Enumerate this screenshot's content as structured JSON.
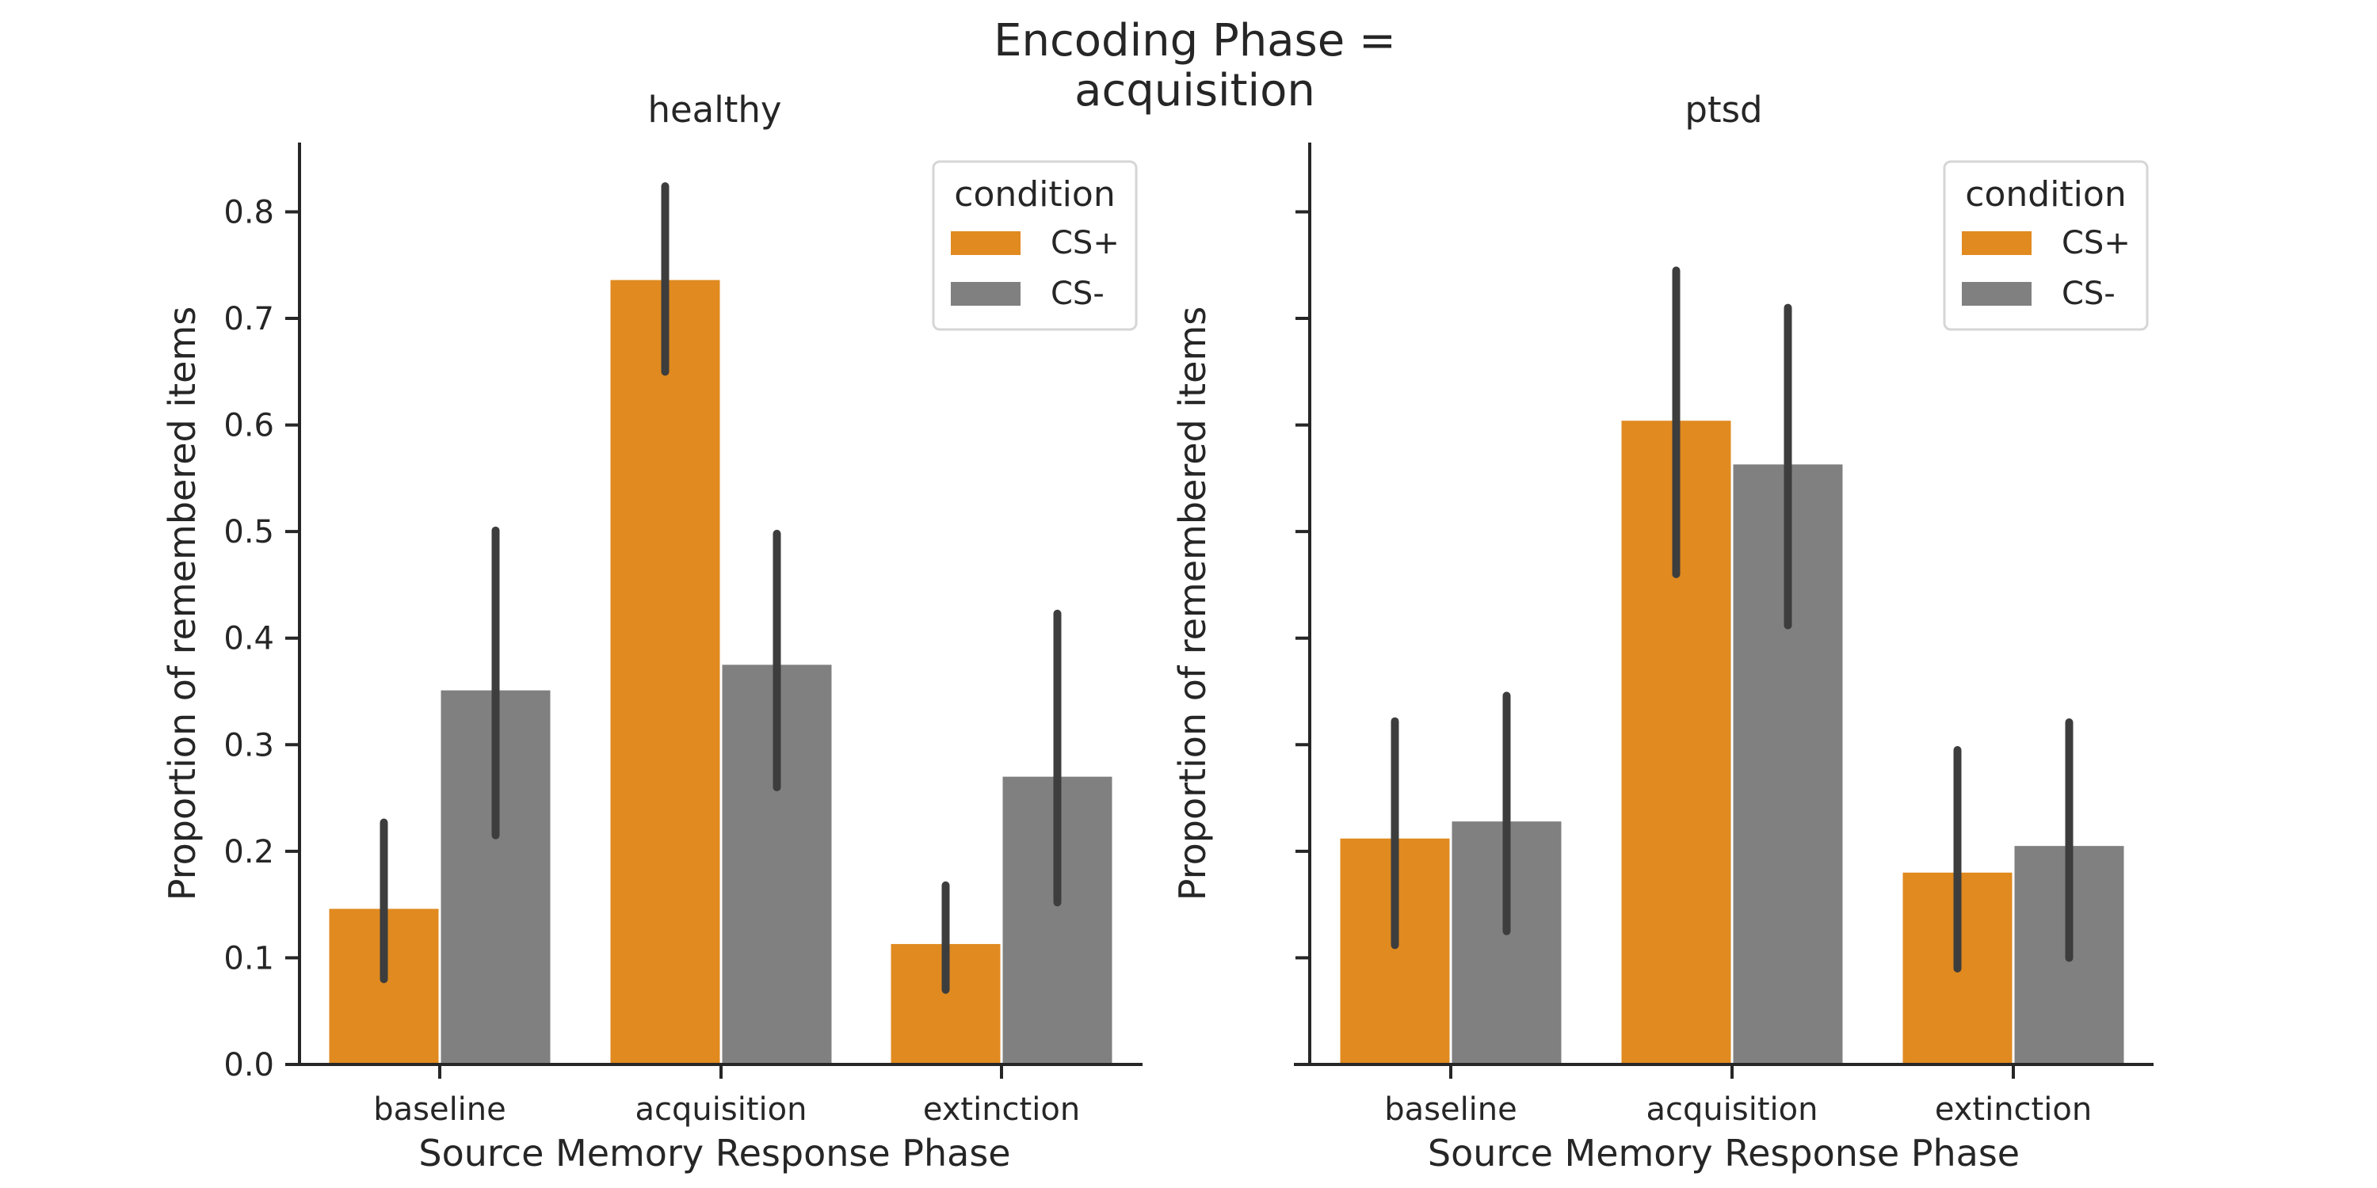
{
  "suptitle": [
    "Encoding Phase =",
    "acquisition"
  ],
  "colors": {
    "CS+": "#e08a20",
    "CS-": "#808080",
    "errorbar": "#3d3d3d",
    "axis": "#262626",
    "legend_border": "#d6d6d6"
  },
  "chart_data": [
    {
      "type": "bar",
      "title": "healthy",
      "xlabel": "Source Memory Response Phase",
      "ylabel": "Proportion of remembered items",
      "categories": [
        "baseline",
        "acquisition",
        "extinction"
      ],
      "ylim": [
        0,
        0.865
      ],
      "yticks": [
        0.0,
        0.1,
        0.2,
        0.3,
        0.4,
        0.5,
        0.6,
        0.7,
        0.8
      ],
      "ytick_labels": [
        "0.0",
        "0.1",
        "0.2",
        "0.3",
        "0.4",
        "0.5",
        "0.6",
        "0.7",
        "0.8"
      ],
      "grid": false,
      "legend": {
        "title": "condition",
        "placement": "upper right"
      },
      "series": [
        {
          "name": "CS+",
          "values": [
            0.146,
            0.736,
            0.113
          ],
          "ci_low": [
            0.08,
            0.65,
            0.07
          ],
          "ci_high": [
            0.227,
            0.824,
            0.168
          ]
        },
        {
          "name": "CS-",
          "values": [
            0.351,
            0.375,
            0.27
          ],
          "ci_low": [
            0.215,
            0.26,
            0.152
          ],
          "ci_high": [
            0.501,
            0.498,
            0.423
          ]
        }
      ]
    },
    {
      "type": "bar",
      "title": "ptsd",
      "xlabel": "Source Memory Response Phase",
      "ylabel": "Proportion of remembered items",
      "categories": [
        "baseline",
        "acquisition",
        "extinction"
      ],
      "ylim": [
        0,
        0.865
      ],
      "yticks": [
        0.0,
        0.1,
        0.2,
        0.3,
        0.4,
        0.5,
        0.6,
        0.7,
        0.8
      ],
      "ytick_labels": [],
      "grid": false,
      "legend": {
        "title": "condition",
        "placement": "upper right"
      },
      "series": [
        {
          "name": "CS+",
          "values": [
            0.212,
            0.604,
            0.18
          ],
          "ci_low": [
            0.112,
            0.46,
            0.09
          ],
          "ci_high": [
            0.322,
            0.745,
            0.295
          ]
        },
        {
          "name": "CS-",
          "values": [
            0.228,
            0.563,
            0.205
          ],
          "ci_low": [
            0.125,
            0.412,
            0.1
          ],
          "ci_high": [
            0.346,
            0.71,
            0.321
          ]
        }
      ]
    }
  ]
}
